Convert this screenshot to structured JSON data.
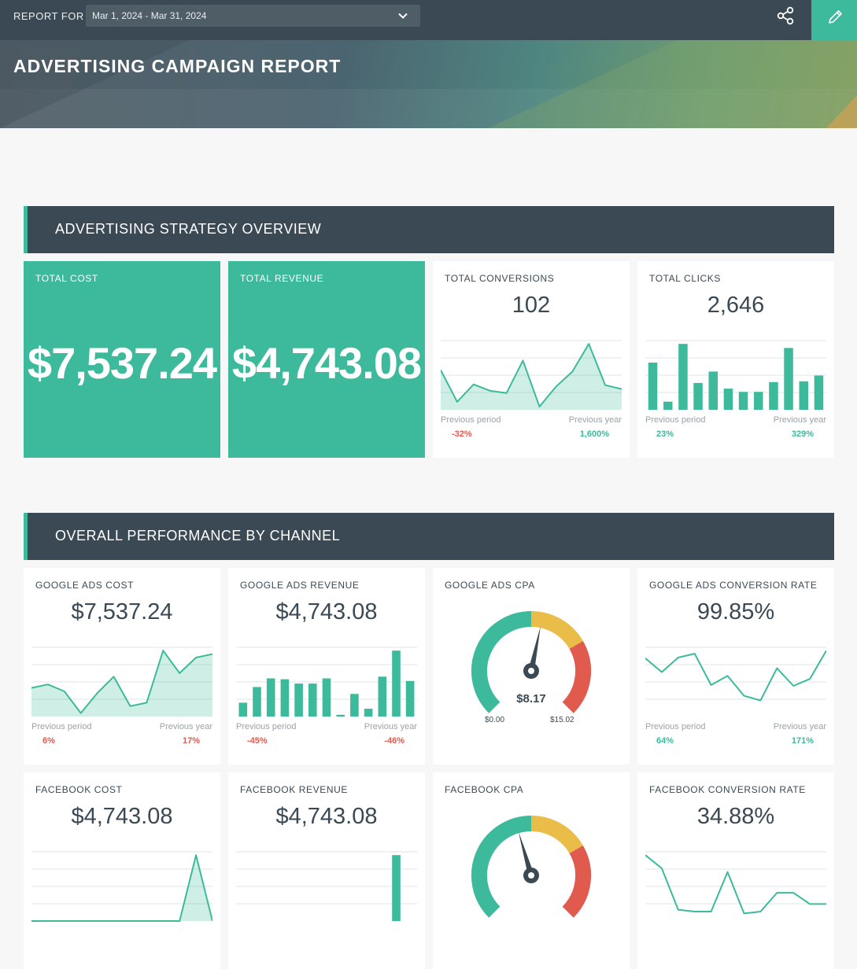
{
  "topbar": {
    "report_for": "REPORT FOR",
    "date_range": "Mar 1, 2024 - Mar 31, 2024"
  },
  "hero": {
    "title": "ADVERTISING CAMPAIGN REPORT"
  },
  "sections": {
    "overview": "ADVERTISING STRATEGY OVERVIEW",
    "channel": "OVERALL PERFORMANCE BY CHANNEL"
  },
  "overview": {
    "total_cost": {
      "label": "TOTAL COST",
      "value": "$7,537.24"
    },
    "total_revenue": {
      "label": "TOTAL REVENUE",
      "value": "$4,743.08"
    },
    "total_conversions": {
      "label": "TOTAL CONVERSIONS",
      "value": "102",
      "prev_period_label": "Previous period",
      "prev_period": "-32%",
      "prev_year_label": "Previous year",
      "prev_year": "1,600%",
      "series": [
        5,
        1,
        3.2,
        2.4,
        2.1,
        6.2,
        0.4,
        2.9,
        4.8,
        8.3,
        3.1,
        2.6
      ]
    },
    "total_clicks": {
      "label": "TOTAL CLICKS",
      "value": "2,646",
      "prev_period_label": "Previous period",
      "prev_period": "23%",
      "prev_year_label": "Previous year",
      "prev_year": "329%",
      "series": [
        5.8,
        1,
        8.1,
        3.3,
        4.7,
        2.6,
        2.2,
        2.2,
        3.4,
        7.6,
        3.5,
        4.2
      ]
    }
  },
  "channel": {
    "google_cost": {
      "label": "GOOGLE ADS COST",
      "value": "$7,537.24",
      "prev_period_label": "Previous period",
      "prev_period": "6%",
      "prev_year_label": "Previous year",
      "prev_year": "17%",
      "series": [
        3.3,
        3.7,
        2.9,
        0.4,
        2.7,
        4.6,
        1.2,
        1.6,
        7.6,
        5.0,
        6.8,
        7.2
      ]
    },
    "google_revenue": {
      "label": "GOOGLE ADS REVENUE",
      "value": "$4,743.08",
      "prev_period_label": "Previous period",
      "prev_period": "-45%",
      "prev_year_label": "Previous year",
      "prev_year": "-46%",
      "series": [
        1.6,
        3.4,
        4.4,
        4.3,
        3.8,
        3.8,
        4.4,
        0.2,
        2.6,
        0.9,
        4.6,
        7.6,
        4.1
      ]
    },
    "google_cpa": {
      "label": "GOOGLE ADS CPA",
      "value": "$8.17",
      "min": "$0.00",
      "max": "$15.02",
      "ratio": 0.544
    },
    "google_conv_rate": {
      "label": "GOOGLE ADS CONVERSION RATE",
      "value": "99.85%",
      "prev_period_label": "Previous period",
      "prev_period": "64%",
      "prev_year_label": "Previous year",
      "prev_year": "171%",
      "series": [
        7.6,
        5.8,
        7.7,
        8.2,
        4.1,
        5.3,
        2.7,
        2.1,
        6.3,
        4.0,
        4.9,
        8.6
      ]
    },
    "facebook_cost": {
      "label": "FACEBOOK COST",
      "value": "$4,743.08",
      "series": [
        0,
        0,
        0,
        0,
        0,
        0,
        0,
        0,
        0,
        0,
        3,
        0
      ]
    },
    "facebook_revenue": {
      "label": "FACEBOOK REVENUE",
      "value": "$4,743.08",
      "series": [
        0,
        0,
        0,
        0,
        0,
        0,
        0,
        0,
        0,
        0,
        0,
        4,
        0
      ]
    },
    "facebook_cpa": {
      "label": "FACEBOOK CPA",
      "ratio": 0.44
    },
    "facebook_conv_rate": {
      "label": "FACEBOOK CONVERSION RATE",
      "value": "34.88%",
      "series": [
        3.5,
        2.8,
        0.6,
        0.5,
        0.5,
        2.6,
        0.4,
        0.5,
        1.5,
        1.5,
        0.9,
        0.9
      ]
    }
  },
  "colors": {
    "accent": "#3cba9b",
    "dark": "#3a4954",
    "negative": "#e05a4e",
    "warning": "#e9bd47"
  }
}
